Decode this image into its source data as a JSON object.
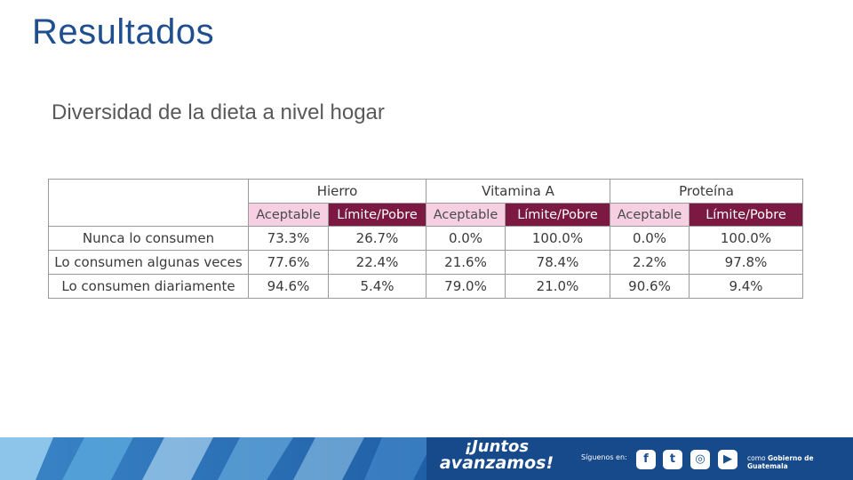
{
  "header": {
    "title": "Resultados",
    "subtitle": "Diversidad de la dieta a nivel hogar"
  },
  "table": {
    "groups": [
      "Hierro",
      "Vitamina A",
      "Proteína"
    ],
    "subheaders": [
      "Aceptable",
      "Límite/Pobre",
      "Aceptable",
      "Límite/Pobre",
      "Aceptable",
      "Límite/Pobre"
    ],
    "rows": [
      {
        "label": "Nunca lo consumen",
        "values": [
          "73.3%",
          "26.7%",
          "0.0%",
          "100.0%",
          "0.0%",
          "100.0%"
        ]
      },
      {
        "label": "Lo consumen algunas veces",
        "values": [
          "77.6%",
          "22.4%",
          "21.6%",
          "78.4%",
          "2.2%",
          "97.8%"
        ]
      },
      {
        "label": "Lo consumen diariamente",
        "values": [
          "94.6%",
          "5.4%",
          "79.0%",
          "21.0%",
          "90.6%",
          "9.4%"
        ]
      }
    ],
    "colors": {
      "aceptable_bg": "#f6cfe2",
      "limite_bg": "#7b1942"
    }
  },
  "footer": {
    "slogan_line1": "¡Juntos",
    "slogan_line2": "avanzamos!",
    "follow_text": "Síguenos en:",
    "social_icons": [
      {
        "name": "facebook-icon",
        "glyph": "f"
      },
      {
        "name": "twitter-icon",
        "glyph": "t"
      },
      {
        "name": "instagram-icon",
        "glyph": "◎"
      },
      {
        "name": "youtube-icon",
        "glyph": "▶"
      }
    ],
    "gov_prefix": "como",
    "gov_name": "Gobierno de Guatemala",
    "colors": {
      "banner_dark": "#1a4e8c",
      "banner_light": "#5aa7dc"
    }
  }
}
